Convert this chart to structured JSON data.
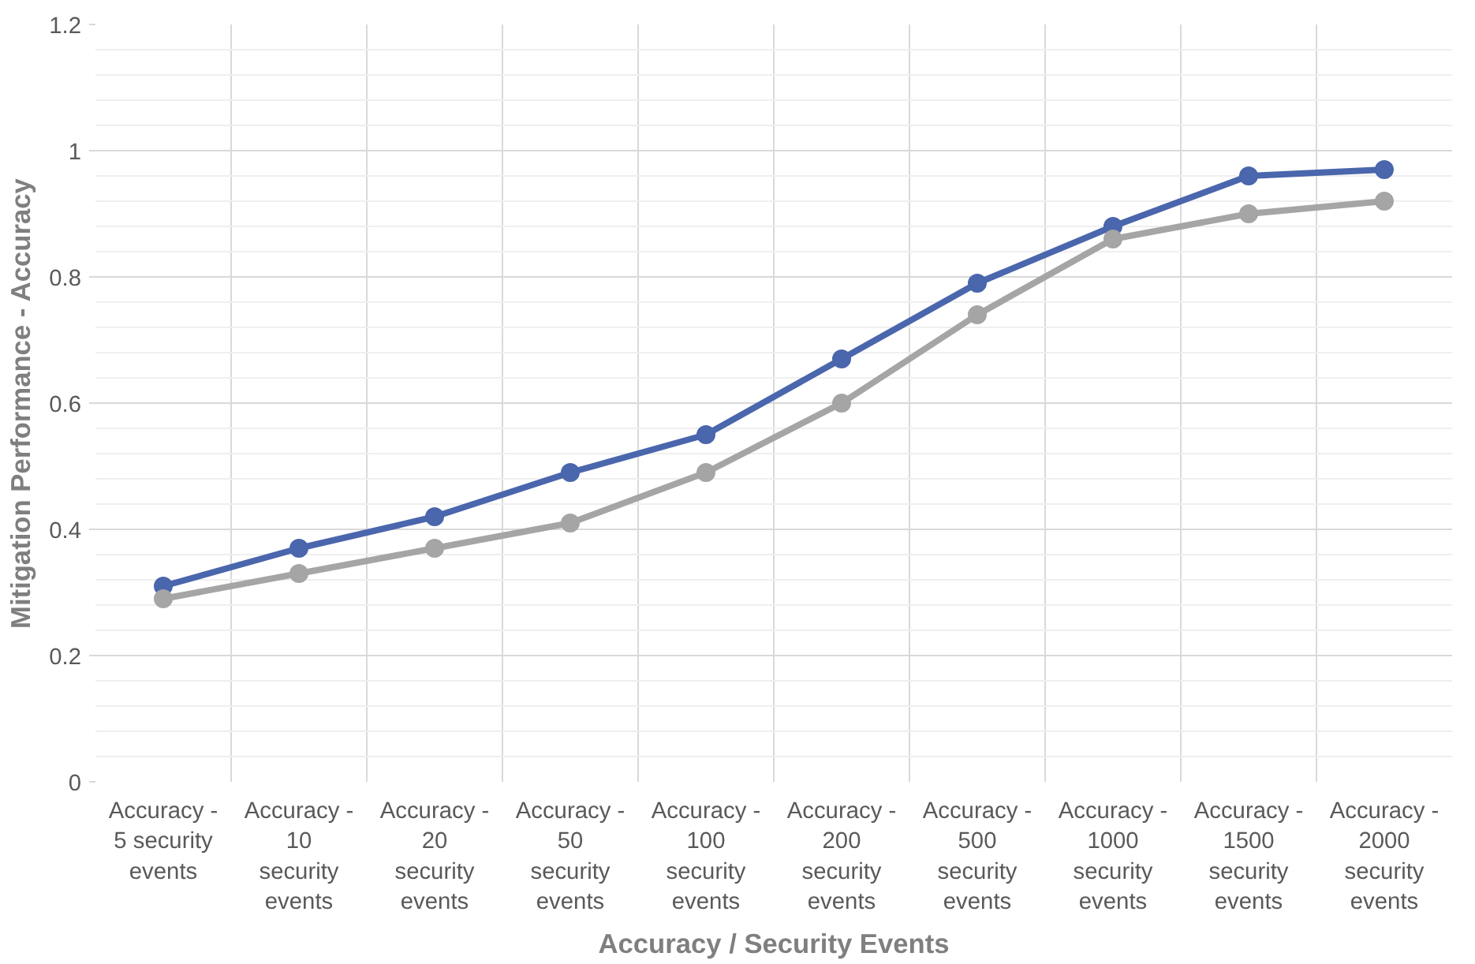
{
  "chart_data": {
    "type": "line",
    "xlabel": "Accuracy / Security Events",
    "ylabel": "Mitigation Performance - Accuracy",
    "categories": [
      "Accuracy -\n5 security\nevents",
      "Accuracy -\n10\nsecurity\nevents",
      "Accuracy -\n20\nsecurity\nevents",
      "Accuracy -\n50\nsecurity\nevents",
      "Accuracy -\n100\nsecurity\nevents",
      "Accuracy -\n200\nsecurity\nevents",
      "Accuracy -\n500\nsecurity\nevents",
      "Accuracy -\n1000\nsecurity\nevents",
      "Accuracy -\n1500\nsecurity\nevents",
      "Accuracy -\n2000\nsecurity\nevents"
    ],
    "series": [
      {
        "color": "#4a66ac",
        "values": [
          0.31,
          0.37,
          0.42,
          0.49,
          0.55,
          0.67,
          0.79,
          0.88,
          0.96,
          0.97
        ]
      },
      {
        "color": "#a5a5a5",
        "values": [
          0.29,
          0.33,
          0.37,
          0.41,
          0.49,
          0.6,
          0.74,
          0.86,
          0.9,
          0.92
        ]
      }
    ],
    "ylim": [
      0,
      1.2
    ],
    "yticks": [
      0,
      0.2,
      0.4,
      0.6,
      0.8,
      1,
      1.2
    ],
    "grid": true,
    "marker": "circle",
    "line_style": "solid"
  }
}
